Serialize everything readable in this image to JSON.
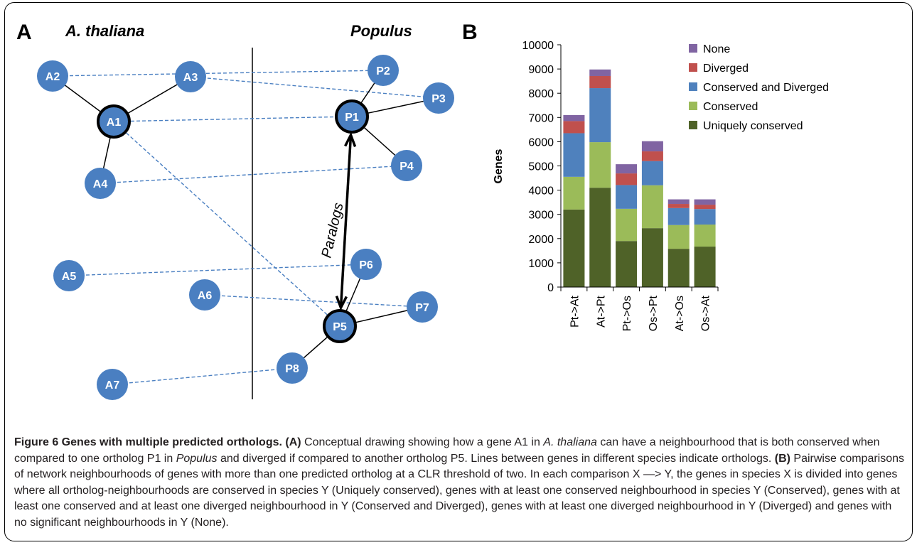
{
  "panel_a": {
    "label": "A",
    "species_left": "A. thaliana",
    "species_right": "Populus",
    "paralogs_label": "Paralogs",
    "left_nodes": [
      {
        "id": "A2",
        "label": "A2"
      },
      {
        "id": "A3",
        "label": "A3"
      },
      {
        "id": "A1",
        "label": "A1",
        "highlight": true
      },
      {
        "id": "A4",
        "label": "A4"
      },
      {
        "id": "A5",
        "label": "A5"
      },
      {
        "id": "A6",
        "label": "A6"
      },
      {
        "id": "A7",
        "label": "A7"
      }
    ],
    "right_nodes": [
      {
        "id": "P2",
        "label": "P2"
      },
      {
        "id": "P3",
        "label": "P3"
      },
      {
        "id": "P1",
        "label": "P1",
        "highlight": true
      },
      {
        "id": "P4",
        "label": "P4"
      },
      {
        "id": "P6",
        "label": "P6"
      },
      {
        "id": "P7",
        "label": "P7"
      },
      {
        "id": "P5",
        "label": "P5",
        "highlight": true
      },
      {
        "id": "P8",
        "label": "P8"
      }
    ],
    "network_edges": [
      [
        "A1",
        "A2"
      ],
      [
        "A1",
        "A3"
      ],
      [
        "A1",
        "A4"
      ],
      [
        "P1",
        "P2"
      ],
      [
        "P1",
        "P3"
      ],
      [
        "P1",
        "P4"
      ],
      [
        "P5",
        "P6"
      ],
      [
        "P5",
        "P7"
      ],
      [
        "P5",
        "P8"
      ]
    ],
    "ortholog_edges": [
      [
        "A2",
        "P2"
      ],
      [
        "A3",
        "P3"
      ],
      [
        "A1",
        "P1"
      ],
      [
        "A4",
        "P4"
      ],
      [
        "A1",
        "P5"
      ],
      [
        "A5",
        "P6"
      ],
      [
        "A6",
        "P7"
      ],
      [
        "A7",
        "P8"
      ]
    ],
    "paralog_edge": [
      "P1",
      "P5"
    ],
    "node_color": "#4a7fc1",
    "ortholog_line_color": "#4a7fc1"
  },
  "panel_b": {
    "label": "B",
    "chart_data": {
      "type": "bar",
      "stacked": true,
      "categories": [
        "Pt->At",
        "At->Pt",
        "Pt->Os",
        "Os->Pt",
        "At->Os",
        "Os->At"
      ],
      "ylabel": "Genes",
      "ylim": [
        0,
        10000
      ],
      "yticks": [
        0,
        1000,
        2000,
        3000,
        4000,
        5000,
        6000,
        7000,
        8000,
        9000,
        10000
      ],
      "ytick_labels": [
        "0",
        "1000",
        "2000",
        "3000",
        "4000",
        "5000",
        "6000",
        "7000",
        "8000",
        "9000",
        "10000"
      ],
      "grid": false,
      "legend_position": "top-right",
      "series": [
        {
          "name": "Uniquely conserved",
          "color": "#4f6228",
          "values": [
            3200,
            4100,
            1900,
            2430,
            1580,
            1670
          ]
        },
        {
          "name": "Conserved",
          "color": "#9bbb59",
          "values": [
            1350,
            1880,
            1330,
            1770,
            980,
            910
          ]
        },
        {
          "name": "Conserved and Diverged",
          "color": "#4f81bd",
          "values": [
            1800,
            2230,
            980,
            1000,
            700,
            640
          ]
        },
        {
          "name": "Diverged",
          "color": "#c0504d",
          "values": [
            500,
            500,
            480,
            400,
            170,
            180
          ]
        },
        {
          "name": "None",
          "color": "#8064a2",
          "values": [
            250,
            270,
            380,
            420,
            190,
            220
          ]
        }
      ]
    }
  },
  "caption": {
    "title": "Figure 6 Genes with multiple predicted orthologs.",
    "p1": " Conceptual drawing showing how a gene A1 in ",
    "p2": "A. thaliana",
    "p3": " can have a neighbourhood that is both conserved when compared to one ortholog P1 in ",
    "p4": "Populus",
    "p5": " and diverged if compared to another ortholog P5. Lines between genes in different species indicate orthologs. ",
    "p6": " Pairwise comparisons of network neighbourhoods of genes with more than one predicted ortholog at a CLR threshold of two. In each comparison X ",
    "arrow": "—>",
    "p7": " Y, the genes in species X is divided into genes where all ortholog-neighbourhoods are conserved in species Y (Uniquely conserved), genes with at least one conserved neighbourhood in species Y (Conserved), genes with at least one conserved and at least one diverged neighbourhood in Y (Conserved and Diverged), genes with at least one diverged neighbourhood in Y (Diverged) and genes with no significant neighbourhoods in Y (None).",
    "ref_a": "(A)",
    "ref_b": "(B)"
  }
}
